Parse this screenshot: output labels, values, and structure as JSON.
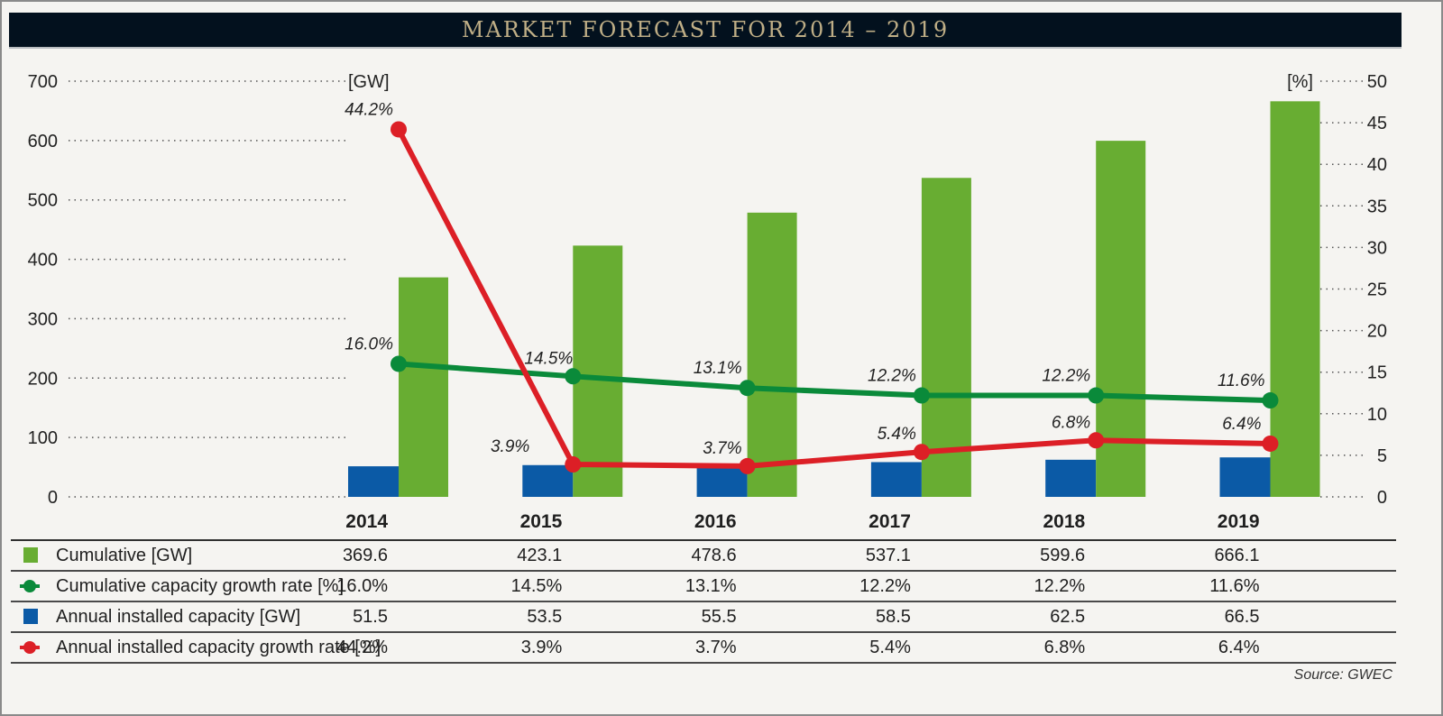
{
  "title": "MARKET FORECAST FOR 2014 – 2019",
  "source": "Source: GWEC",
  "colors": {
    "cumulative": "#68ad32",
    "annual": "#0b5aa6",
    "cumulative_growth": "#0a8a3a",
    "annual_growth": "#dc1f26"
  },
  "table": {
    "years": [
      "2014",
      "2015",
      "2016",
      "2017",
      "2018",
      "2019"
    ],
    "rows": [
      {
        "key": "cumulative",
        "icon": "green-square-icon",
        "label": "Cumulative [GW]",
        "values": [
          "369.6",
          "423.1",
          "478.6",
          "537.1",
          "599.6",
          "666.1"
        ]
      },
      {
        "key": "cumulative_growth",
        "icon": "green-line-dot-icon",
        "label": "Cumulative capacity growth rate [%]",
        "values": [
          "16.0%",
          "14.5%",
          "13.1%",
          "12.2%",
          "12.2%",
          "11.6%"
        ]
      },
      {
        "key": "annual",
        "icon": "blue-square-icon",
        "label": "Annual installed capacity [GW]",
        "values": [
          "51.5",
          "53.5",
          "55.5",
          "58.5",
          "62.5",
          "66.5"
        ]
      },
      {
        "key": "annual_growth",
        "icon": "red-line-dot-icon",
        "label": "Annual installed capacity growth rate [%]",
        "values": [
          "44.2%",
          "3.9%",
          "3.7%",
          "5.4%",
          "6.8%",
          "6.4%"
        ]
      }
    ]
  },
  "chart_data": {
    "type": "bar",
    "title": "MARKET FORECAST FOR 2014 – 2019",
    "categories": [
      "2014",
      "2015",
      "2016",
      "2017",
      "2018",
      "2019"
    ],
    "left_axis": {
      "label": "[GW]",
      "range": [
        0,
        700
      ],
      "ticks": [
        0,
        100,
        200,
        300,
        400,
        500,
        600,
        700
      ]
    },
    "right_axis": {
      "label": "[%]",
      "range": [
        0,
        50
      ],
      "ticks": [
        0,
        5,
        10,
        15,
        20,
        25,
        30,
        35,
        40,
        45,
        50
      ]
    },
    "grid": "dotted",
    "legend_placement": "bottom (table)",
    "series": [
      {
        "name": "Annual installed capacity [GW]",
        "type": "bar",
        "axis": "left",
        "values": [
          51.5,
          53.5,
          55.5,
          58.5,
          62.5,
          66.5
        ]
      },
      {
        "name": "Cumulative [GW]",
        "type": "bar",
        "axis": "left",
        "values": [
          369.6,
          423.1,
          478.6,
          537.1,
          599.6,
          666.1
        ]
      },
      {
        "name": "Cumulative capacity growth rate [%]",
        "type": "line",
        "axis": "right",
        "values": [
          16.0,
          14.5,
          13.1,
          12.2,
          12.2,
          11.6
        ],
        "labels": [
          "16.0%",
          "14.5%",
          "13.1%",
          "12.2%",
          "12.2%",
          "11.6%"
        ]
      },
      {
        "name": "Annual installed capacity growth rate [%]",
        "type": "line",
        "axis": "right",
        "values": [
          44.2,
          3.9,
          3.7,
          5.4,
          6.8,
          6.4
        ],
        "labels": [
          "44.2%",
          "3.9%",
          "3.7%",
          "5.4%",
          "6.8%",
          "6.4%"
        ]
      }
    ]
  }
}
